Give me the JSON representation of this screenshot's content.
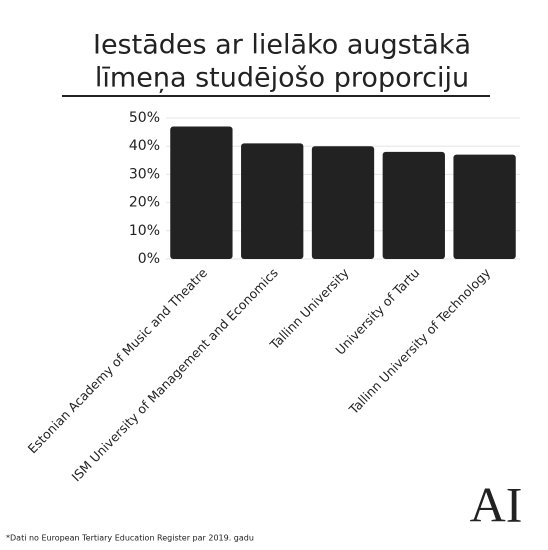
{
  "chart_data": {
    "type": "bar",
    "title": [
      "Iestādes ar lielāko augstākā",
      "līmeņa studējošo proporciju"
    ],
    "categories": [
      "Estonian Academy of Music and Theatre",
      "ISM University of Management and Economics",
      "Tallinn University",
      "University of Tartu",
      "Tallinn University of Technology"
    ],
    "values": [
      47,
      41,
      40,
      38,
      37
    ],
    "color": "#222222",
    "ylim": [
      0,
      50
    ],
    "yticks": [
      {
        "value": 0,
        "label": "0%"
      },
      {
        "value": 10,
        "label": "10%"
      },
      {
        "value": 20,
        "label": "20%"
      },
      {
        "value": 30,
        "label": "30%"
      },
      {
        "value": 40,
        "label": "40%"
      },
      {
        "value": 50,
        "label": "50%"
      }
    ],
    "grid": true
  },
  "footer": {
    "note": "*Dati no European Tertiary Education Register par 2019. gadu",
    "logo": "AI"
  }
}
